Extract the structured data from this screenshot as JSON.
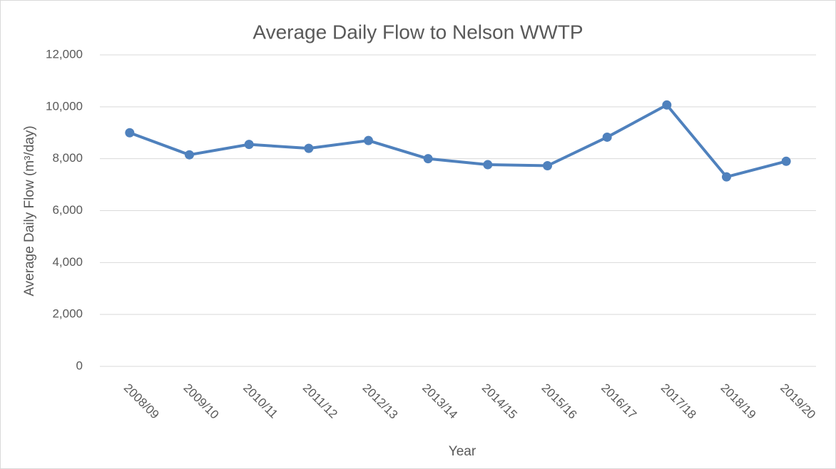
{
  "chart_data": {
    "type": "line",
    "title": "Average Daily Flow to Nelson WWTP",
    "x_label": "Year",
    "y_label": "Average Daily Flow (m³/day)",
    "categories": [
      "2008/09",
      "2009/10",
      "2010/11",
      "2011/12",
      "2012/13",
      "2013/14",
      "2014/15",
      "2015/16",
      "2016/17",
      "2017/18",
      "2018/19",
      "2019/20"
    ],
    "series": [
      {
        "name": "Average Daily Flow",
        "color": "#4f81bd",
        "values": [
          9000,
          8150,
          8550,
          8400,
          8700,
          8000,
          7770,
          7730,
          8830,
          10070,
          7300,
          7900
        ]
      }
    ],
    "ylim": [
      0,
      12000
    ],
    "yticks": [
      0,
      {
        "value": 2000,
        "label": "2,000"
      },
      {
        "value": 4000,
        "label": "4,000"
      },
      {
        "value": 6000,
        "label": "6,000"
      },
      {
        "value": 8000,
        "label": "8,000"
      },
      {
        "value": 10000,
        "label": "10,000"
      },
      {
        "value": 12000,
        "label": "12,000"
      }
    ],
    "grid": true
  }
}
